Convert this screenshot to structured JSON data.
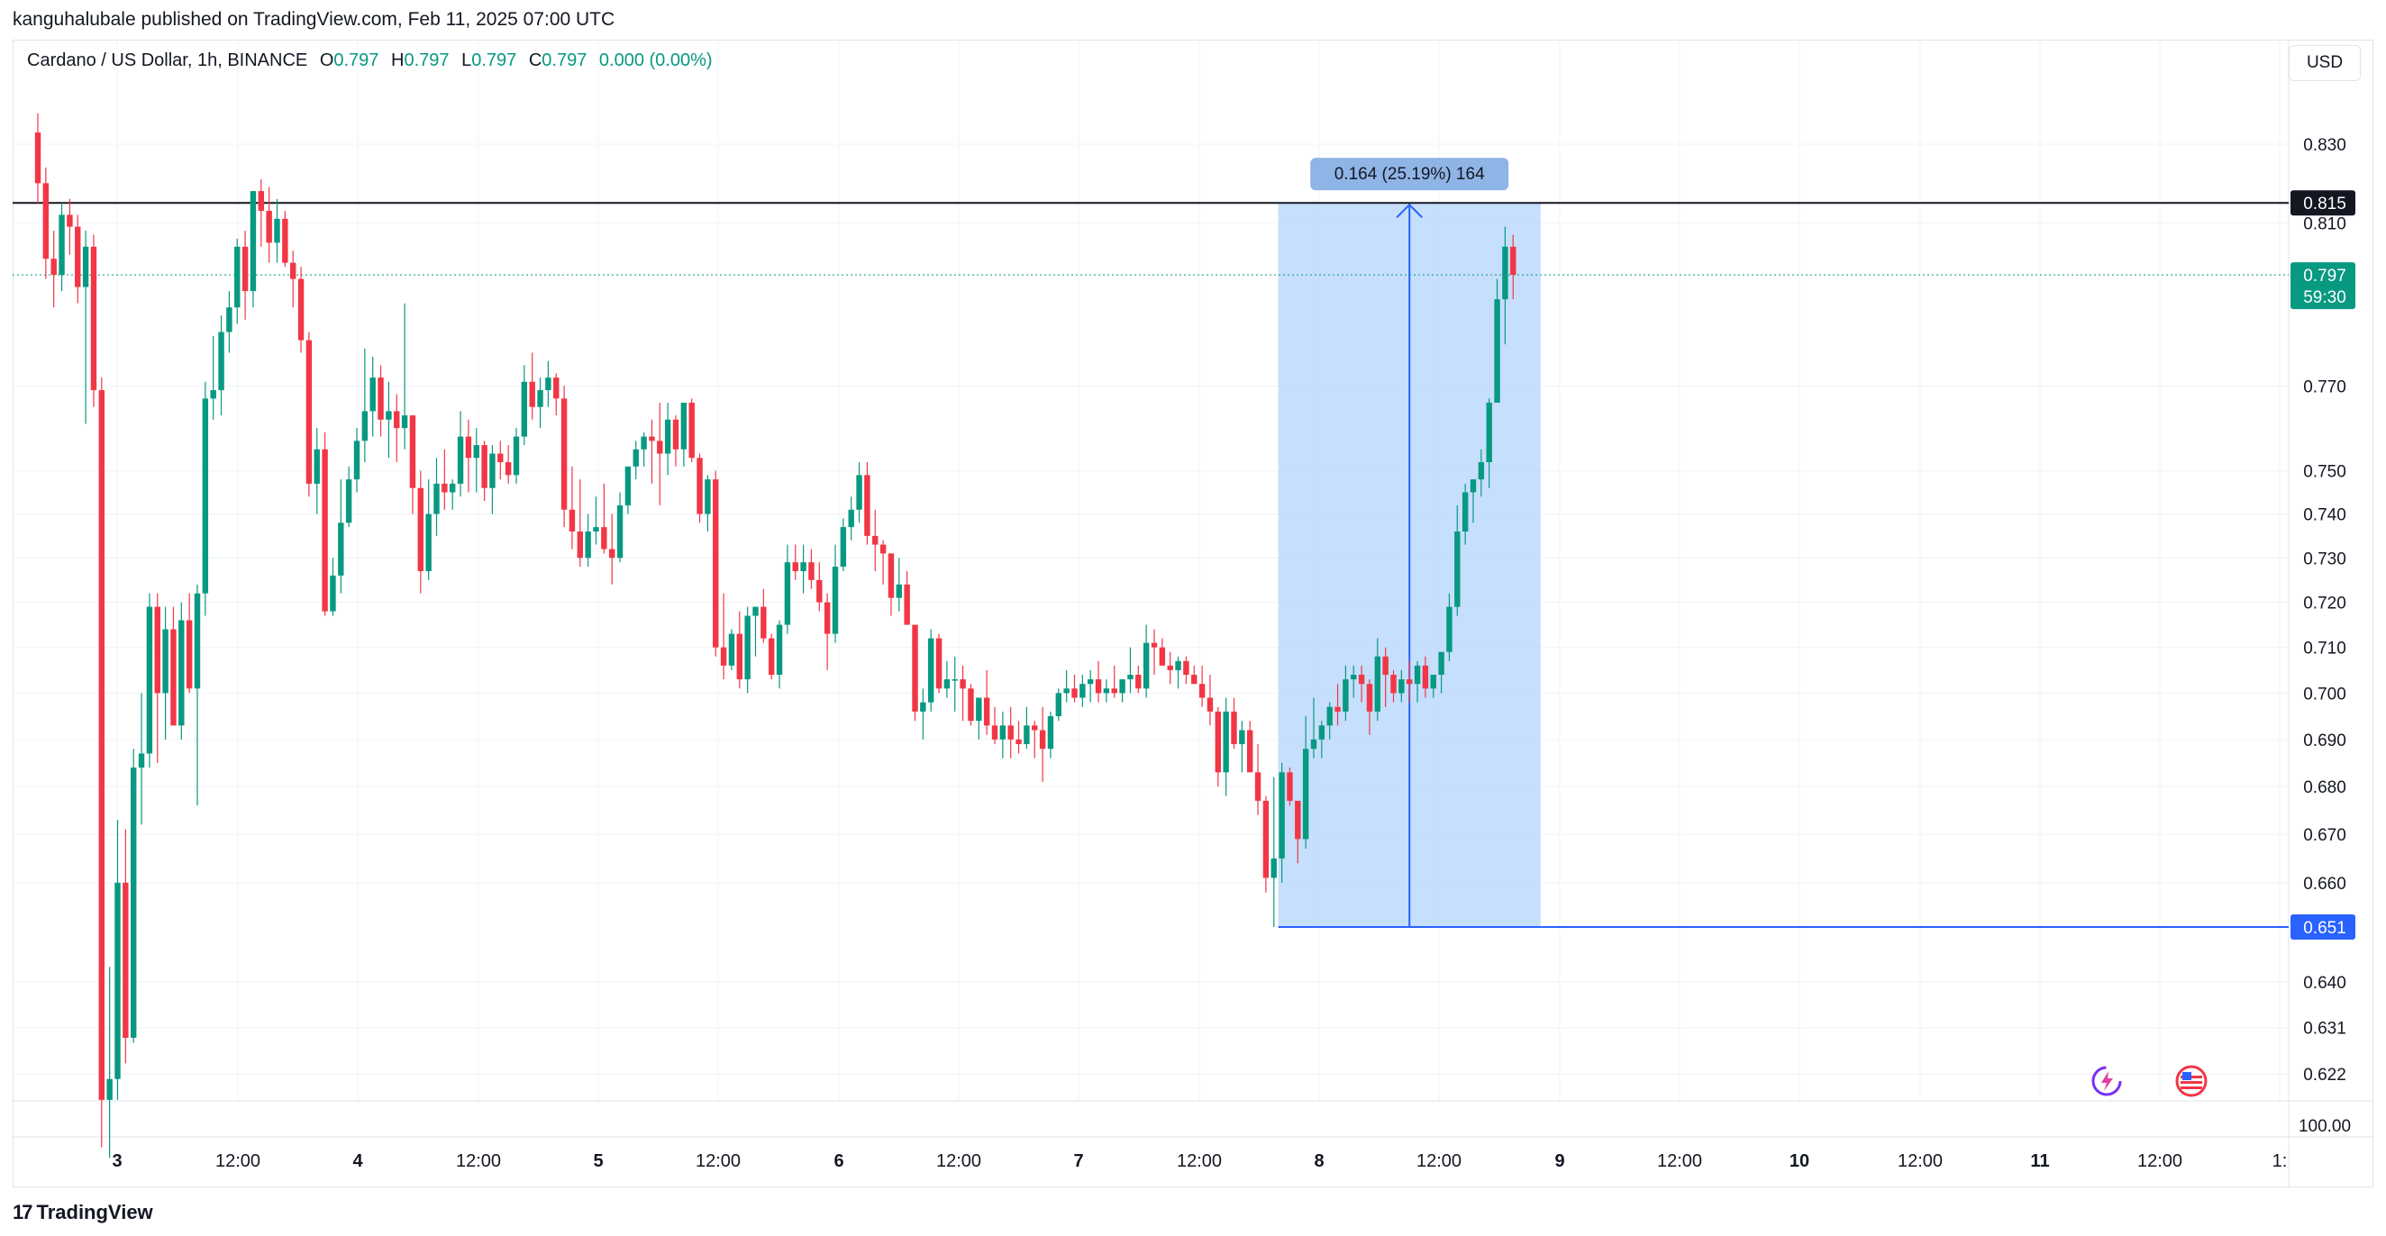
{
  "publisher_line": "kanguhalubale published on TradingView.com, Feb 11, 2025 07:00 UTC",
  "legend": {
    "symbol": "Cardano / US Dollar, 1h, BINANCE",
    "o_label": "O",
    "o": "0.797",
    "h_label": "H",
    "h": "0.797",
    "l_label": "L",
    "l": "0.797",
    "c_label": "C",
    "c": "0.797",
    "change": "0.000 (0.00%)"
  },
  "currency": "USD",
  "brand": "TradingView",
  "colors": {
    "up": "#089981",
    "down": "#f23645",
    "measure_fill": "#bbd9fb",
    "measure_line": "#2962ff",
    "resistance": "#131722"
  },
  "chart_data": {
    "type": "candlestick",
    "symbol": "ADA/USD",
    "interval": "1h",
    "y_scale": "log",
    "y_ticks": [
      "0.830",
      "0.810",
      "0.770",
      "0.750",
      "0.740",
      "0.730",
      "0.720",
      "0.710",
      "0.700",
      "0.690",
      "0.680",
      "0.670",
      "0.660",
      "0.640",
      "0.631",
      "0.622"
    ],
    "y_tick_values": [
      0.83,
      0.81,
      0.77,
      0.75,
      0.74,
      0.73,
      0.72,
      0.71,
      0.7,
      0.69,
      0.68,
      0.67,
      0.66,
      0.64,
      0.631,
      0.622
    ],
    "volume_tick": "100.00",
    "x_ticks": [
      "3",
      "12:00",
      "4",
      "12:00",
      "5",
      "12:00",
      "6",
      "12:00",
      "7",
      "12:00",
      "8",
      "12:00",
      "9",
      "12:00",
      "10",
      "12:00",
      "11",
      "12:00",
      "1:"
    ],
    "x_tick_bold": [
      true,
      false,
      true,
      false,
      true,
      false,
      true,
      false,
      true,
      false,
      true,
      false,
      true,
      false,
      true,
      false,
      true,
      false,
      false
    ],
    "candles_ohlc": [
      [
        0.833,
        0.838,
        0.815,
        0.82
      ],
      [
        0.82,
        0.824,
        0.796,
        0.801
      ],
      [
        0.801,
        0.808,
        0.789,
        0.797
      ],
      [
        0.797,
        0.815,
        0.793,
        0.812
      ],
      [
        0.812,
        0.816,
        0.802,
        0.809
      ],
      [
        0.809,
        0.812,
        0.79,
        0.794
      ],
      [
        0.794,
        0.808,
        0.761,
        0.804
      ],
      [
        0.804,
        0.807,
        0.765,
        0.769
      ],
      [
        0.769,
        0.772,
        0.608,
        0.617
      ],
      [
        0.617,
        0.643,
        0.606,
        0.621
      ],
      [
        0.621,
        0.673,
        0.617,
        0.66
      ],
      [
        0.66,
        0.671,
        0.624,
        0.629
      ],
      [
        0.629,
        0.688,
        0.628,
        0.684
      ],
      [
        0.684,
        0.7,
        0.672,
        0.687
      ],
      [
        0.687,
        0.722,
        0.684,
        0.719
      ],
      [
        0.719,
        0.722,
        0.685,
        0.7
      ],
      [
        0.7,
        0.719,
        0.69,
        0.714
      ],
      [
        0.714,
        0.719,
        0.694,
        0.693
      ],
      [
        0.693,
        0.72,
        0.69,
        0.716
      ],
      [
        0.716,
        0.722,
        0.7,
        0.701
      ],
      [
        0.701,
        0.724,
        0.676,
        0.722
      ],
      [
        0.722,
        0.771,
        0.717,
        0.767
      ],
      [
        0.767,
        0.782,
        0.762,
        0.769
      ],
      [
        0.769,
        0.787,
        0.763,
        0.783
      ],
      [
        0.783,
        0.793,
        0.778,
        0.789
      ],
      [
        0.789,
        0.806,
        0.785,
        0.804
      ],
      [
        0.804,
        0.808,
        0.786,
        0.793
      ],
      [
        0.793,
        0.812,
        0.789,
        0.818
      ],
      [
        0.818,
        0.821,
        0.804,
        0.813
      ],
      [
        0.813,
        0.819,
        0.8,
        0.805
      ],
      [
        0.805,
        0.816,
        0.8,
        0.811
      ],
      [
        0.811,
        0.813,
        0.799,
        0.8
      ],
      [
        0.8,
        0.803,
        0.789,
        0.796
      ],
      [
        0.796,
        0.799,
        0.778,
        0.781
      ],
      [
        0.781,
        0.783,
        0.744,
        0.747
      ],
      [
        0.747,
        0.76,
        0.74,
        0.755
      ],
      [
        0.755,
        0.759,
        0.717,
        0.718
      ],
      [
        0.718,
        0.73,
        0.717,
        0.726
      ],
      [
        0.726,
        0.748,
        0.722,
        0.738
      ],
      [
        0.738,
        0.751,
        0.737,
        0.748
      ],
      [
        0.748,
        0.76,
        0.745,
        0.757
      ],
      [
        0.757,
        0.779,
        0.752,
        0.764
      ],
      [
        0.764,
        0.777,
        0.758,
        0.772
      ],
      [
        0.772,
        0.775,
        0.758,
        0.762
      ],
      [
        0.762,
        0.771,
        0.753,
        0.764
      ],
      [
        0.764,
        0.768,
        0.752,
        0.76
      ],
      [
        0.76,
        0.79,
        0.755,
        0.763
      ],
      [
        0.763,
        0.763,
        0.74,
        0.746
      ],
      [
        0.746,
        0.75,
        0.722,
        0.727
      ],
      [
        0.727,
        0.748,
        0.725,
        0.74
      ],
      [
        0.74,
        0.753,
        0.735,
        0.747
      ],
      [
        0.747,
        0.755,
        0.741,
        0.745
      ],
      [
        0.745,
        0.748,
        0.741,
        0.747
      ],
      [
        0.747,
        0.764,
        0.744,
        0.758
      ],
      [
        0.758,
        0.762,
        0.745,
        0.753
      ],
      [
        0.753,
        0.76,
        0.745,
        0.756
      ],
      [
        0.756,
        0.757,
        0.743,
        0.746
      ],
      [
        0.746,
        0.756,
        0.74,
        0.754
      ],
      [
        0.754,
        0.757,
        0.748,
        0.752
      ],
      [
        0.752,
        0.756,
        0.747,
        0.749
      ],
      [
        0.749,
        0.76,
        0.747,
        0.758
      ],
      [
        0.758,
        0.775,
        0.756,
        0.771
      ],
      [
        0.771,
        0.778,
        0.762,
        0.765
      ],
      [
        0.765,
        0.772,
        0.76,
        0.769
      ],
      [
        0.769,
        0.776,
        0.765,
        0.772
      ],
      [
        0.772,
        0.773,
        0.763,
        0.767
      ],
      [
        0.767,
        0.77,
        0.737,
        0.741
      ],
      [
        0.741,
        0.751,
        0.732,
        0.736
      ],
      [
        0.736,
        0.748,
        0.728,
        0.73
      ],
      [
        0.73,
        0.74,
        0.728,
        0.736
      ],
      [
        0.736,
        0.744,
        0.733,
        0.737
      ],
      [
        0.737,
        0.747,
        0.731,
        0.732
      ],
      [
        0.732,
        0.74,
        0.724,
        0.73
      ],
      [
        0.73,
        0.745,
        0.729,
        0.742
      ],
      [
        0.742,
        0.746,
        0.74,
        0.751
      ],
      [
        0.751,
        0.757,
        0.748,
        0.755
      ],
      [
        0.755,
        0.759,
        0.751,
        0.758
      ],
      [
        0.758,
        0.762,
        0.747,
        0.757
      ],
      [
        0.757,
        0.766,
        0.742,
        0.754
      ],
      [
        0.754,
        0.766,
        0.749,
        0.762
      ],
      [
        0.762,
        0.763,
        0.751,
        0.755
      ],
      [
        0.755,
        0.766,
        0.751,
        0.766
      ],
      [
        0.766,
        0.767,
        0.752,
        0.753
      ],
      [
        0.753,
        0.754,
        0.738,
        0.74
      ],
      [
        0.74,
        0.749,
        0.736,
        0.748
      ],
      [
        0.748,
        0.75,
        0.708,
        0.71
      ],
      [
        0.71,
        0.722,
        0.703,
        0.706
      ],
      [
        0.706,
        0.714,
        0.705,
        0.713
      ],
      [
        0.713,
        0.718,
        0.701,
        0.703
      ],
      [
        0.703,
        0.719,
        0.7,
        0.717
      ],
      [
        0.717,
        0.719,
        0.708,
        0.719
      ],
      [
        0.719,
        0.723,
        0.711,
        0.712
      ],
      [
        0.712,
        0.713,
        0.703,
        0.704
      ],
      [
        0.704,
        0.716,
        0.701,
        0.715
      ],
      [
        0.715,
        0.733,
        0.713,
        0.729
      ],
      [
        0.729,
        0.733,
        0.725,
        0.727
      ],
      [
        0.727,
        0.733,
        0.722,
        0.729
      ],
      [
        0.729,
        0.732,
        0.723,
        0.725
      ],
      [
        0.725,
        0.729,
        0.718,
        0.72
      ],
      [
        0.72,
        0.722,
        0.705,
        0.713
      ],
      [
        0.713,
        0.733,
        0.711,
        0.728
      ],
      [
        0.728,
        0.739,
        0.727,
        0.737
      ],
      [
        0.737,
        0.744,
        0.734,
        0.741
      ],
      [
        0.741,
        0.752,
        0.738,
        0.749
      ],
      [
        0.749,
        0.752,
        0.733,
        0.735
      ],
      [
        0.735,
        0.741,
        0.727,
        0.733
      ],
      [
        0.733,
        0.734,
        0.724,
        0.731
      ],
      [
        0.731,
        0.731,
        0.717,
        0.721
      ],
      [
        0.721,
        0.73,
        0.718,
        0.724
      ],
      [
        0.724,
        0.727,
        0.716,
        0.715
      ],
      [
        0.715,
        0.715,
        0.694,
        0.696
      ],
      [
        0.696,
        0.701,
        0.69,
        0.698
      ],
      [
        0.698,
        0.714,
        0.696,
        0.712
      ],
      [
        0.712,
        0.713,
        0.7,
        0.701
      ],
      [
        0.701,
        0.707,
        0.699,
        0.703
      ],
      [
        0.703,
        0.708,
        0.696,
        0.703
      ],
      [
        0.703,
        0.706,
        0.694,
        0.701
      ],
      [
        0.701,
        0.702,
        0.693,
        0.694
      ],
      [
        0.694,
        0.699,
        0.69,
        0.699
      ],
      [
        0.699,
        0.705,
        0.691,
        0.693
      ],
      [
        0.693,
        0.697,
        0.689,
        0.69
      ],
      [
        0.69,
        0.696,
        0.686,
        0.693
      ],
      [
        0.693,
        0.697,
        0.686,
        0.69
      ],
      [
        0.69,
        0.694,
        0.687,
        0.689
      ],
      [
        0.689,
        0.697,
        0.688,
        0.693
      ],
      [
        0.693,
        0.694,
        0.686,
        0.692
      ],
      [
        0.692,
        0.697,
        0.681,
        0.688
      ],
      [
        0.688,
        0.696,
        0.686,
        0.695
      ],
      [
        0.695,
        0.701,
        0.694,
        0.7
      ],
      [
        0.7,
        0.705,
        0.698,
        0.701
      ],
      [
        0.701,
        0.704,
        0.698,
        0.699
      ],
      [
        0.699,
        0.704,
        0.697,
        0.702
      ],
      [
        0.702,
        0.705,
        0.698,
        0.703
      ],
      [
        0.703,
        0.707,
        0.698,
        0.7
      ],
      [
        0.7,
        0.703,
        0.698,
        0.701
      ],
      [
        0.701,
        0.706,
        0.699,
        0.7
      ],
      [
        0.7,
        0.702,
        0.698,
        0.703
      ],
      [
        0.703,
        0.71,
        0.7,
        0.704
      ],
      [
        0.704,
        0.706,
        0.7,
        0.701
      ],
      [
        0.701,
        0.715,
        0.699,
        0.711
      ],
      [
        0.711,
        0.714,
        0.704,
        0.71
      ],
      [
        0.71,
        0.712,
        0.707,
        0.706
      ],
      [
        0.706,
        0.709,
        0.702,
        0.705
      ],
      [
        0.705,
        0.708,
        0.701,
        0.707
      ],
      [
        0.707,
        0.708,
        0.702,
        0.704
      ],
      [
        0.704,
        0.706,
        0.702,
        0.702
      ],
      [
        0.702,
        0.706,
        0.697,
        0.699
      ],
      [
        0.699,
        0.704,
        0.693,
        0.696
      ],
      [
        0.696,
        0.697,
        0.68,
        0.683
      ],
      [
        0.683,
        0.699,
        0.678,
        0.696
      ],
      [
        0.696,
        0.699,
        0.688,
        0.689
      ],
      [
        0.689,
        0.694,
        0.683,
        0.692
      ],
      [
        0.692,
        0.694,
        0.683,
        0.683
      ],
      [
        0.683,
        0.689,
        0.674,
        0.677
      ],
      [
        0.677,
        0.678,
        0.658,
        0.661
      ],
      [
        0.661,
        0.682,
        0.651,
        0.665
      ],
      [
        0.665,
        0.685,
        0.66,
        0.683
      ],
      [
        0.683,
        0.684,
        0.676,
        0.677
      ],
      [
        0.677,
        0.676,
        0.664,
        0.669
      ],
      [
        0.669,
        0.695,
        0.667,
        0.688
      ],
      [
        0.688,
        0.699,
        0.686,
        0.69
      ],
      [
        0.69,
        0.694,
        0.686,
        0.693
      ],
      [
        0.693,
        0.698,
        0.69,
        0.697
      ],
      [
        0.697,
        0.702,
        0.693,
        0.696
      ],
      [
        0.696,
        0.706,
        0.694,
        0.703
      ],
      [
        0.703,
        0.706,
        0.699,
        0.704
      ],
      [
        0.704,
        0.706,
        0.698,
        0.702
      ],
      [
        0.702,
        0.703,
        0.691,
        0.696
      ],
      [
        0.696,
        0.712,
        0.694,
        0.708
      ],
      [
        0.708,
        0.71,
        0.697,
        0.704
      ],
      [
        0.704,
        0.705,
        0.698,
        0.7
      ],
      [
        0.7,
        0.705,
        0.698,
        0.703
      ],
      [
        0.703,
        0.707,
        0.698,
        0.702
      ],
      [
        0.702,
        0.707,
        0.698,
        0.706
      ],
      [
        0.706,
        0.708,
        0.699,
        0.701
      ],
      [
        0.701,
        0.704,
        0.699,
        0.704
      ],
      [
        0.704,
        0.708,
        0.7,
        0.709
      ],
      [
        0.709,
        0.722,
        0.707,
        0.719
      ],
      [
        0.719,
        0.742,
        0.717,
        0.736
      ],
      [
        0.736,
        0.747,
        0.733,
        0.745
      ],
      [
        0.745,
        0.748,
        0.738,
        0.748
      ],
      [
        0.748,
        0.755,
        0.744,
        0.752
      ],
      [
        0.752,
        0.767,
        0.746,
        0.766
      ],
      [
        0.766,
        0.796,
        0.766,
        0.791
      ],
      [
        0.791,
        0.809,
        0.78,
        0.804
      ],
      [
        0.804,
        0.807,
        0.791,
        0.797
      ]
    ],
    "price_labels": [
      {
        "value": 0.815,
        "text": "0.815",
        "kind": "resistance"
      },
      {
        "value": 0.797,
        "text": "0.797",
        "sub": "59:30",
        "kind": "last"
      },
      {
        "value": 0.651,
        "text": "0.651",
        "kind": "support"
      }
    ],
    "measure": {
      "from": 0.651,
      "to": 0.815,
      "label": "0.164 (25.19%) 164",
      "start_index": 156,
      "end_index": 188
    }
  }
}
